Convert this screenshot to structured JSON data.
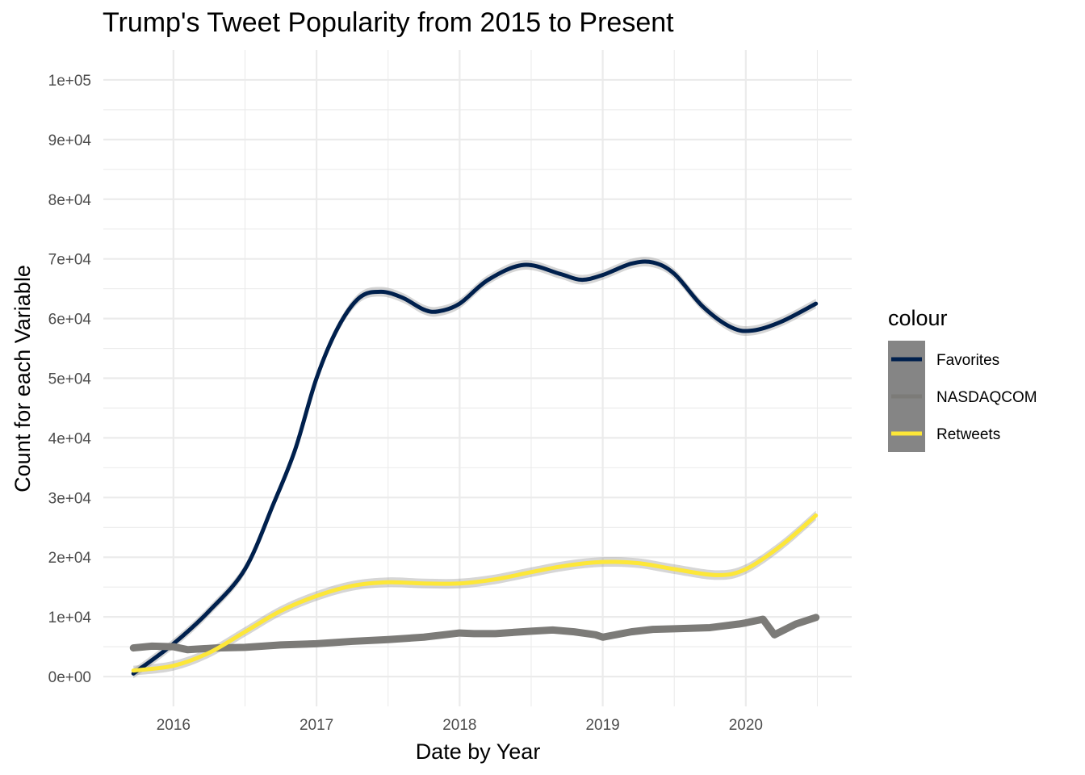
{
  "chart_data": {
    "type": "line",
    "title": "Trump's Tweet Popularity from 2015 to Present",
    "xlabel": "Date by Year",
    "ylabel": "Count for each Variable",
    "xlim": [
      2015.51,
      2020.74
    ],
    "ylim": [
      -5000,
      105000
    ],
    "x_ticks": [
      2016,
      2017,
      2018,
      2019,
      2020
    ],
    "x_tick_labels": [
      "2016",
      "2017",
      "2018",
      "2019",
      "2020"
    ],
    "y_ticks": [
      0,
      10000,
      20000,
      30000,
      40000,
      50000,
      60000,
      70000,
      80000,
      90000,
      100000
    ],
    "y_tick_labels": [
      "0e+00",
      "1e+04",
      "2e+04",
      "3e+04",
      "4e+04",
      "5e+04",
      "6e+04",
      "7e+04",
      "8e+04",
      "9e+04",
      "1e+05"
    ],
    "grid": true,
    "legend_title": "colour",
    "legend_position": "right",
    "series": [
      {
        "name": "Favorites",
        "color": "#00204d",
        "smooth": true,
        "confidence_band": true,
        "x": [
          2015.72,
          2016.0,
          2016.25,
          2016.5,
          2016.7,
          2016.85,
          2017.0,
          2017.15,
          2017.3,
          2017.45,
          2017.6,
          2017.75,
          2017.85,
          2018.0,
          2018.2,
          2018.45,
          2018.7,
          2018.85,
          2019.0,
          2019.2,
          2019.35,
          2019.5,
          2019.7,
          2019.9,
          2020.05,
          2020.25,
          2020.49
        ],
        "y": [
          500,
          5500,
          11000,
          18000,
          29000,
          38000,
          50000,
          58500,
          63500,
          64500,
          63500,
          61500,
          61200,
          62500,
          66500,
          69000,
          67500,
          66500,
          67300,
          69200,
          69400,
          67500,
          62000,
          58500,
          58000,
          59500,
          62500
        ]
      },
      {
        "name": "NASDAQCOM",
        "color": "#7c7b78",
        "smooth": false,
        "confidence_band": false,
        "x": [
          2015.72,
          2015.85,
          2016.0,
          2016.1,
          2016.3,
          2016.5,
          2016.75,
          2017.0,
          2017.25,
          2017.5,
          2017.75,
          2018.0,
          2018.1,
          2018.25,
          2018.5,
          2018.65,
          2018.8,
          2018.95,
          2019.0,
          2019.2,
          2019.35,
          2019.5,
          2019.75,
          2019.95,
          2020.0,
          2020.12,
          2020.2,
          2020.35,
          2020.49
        ],
        "y": [
          4800,
          5100,
          5000,
          4500,
          4800,
          4900,
          5300,
          5500,
          5900,
          6200,
          6600,
          7300,
          7200,
          7200,
          7600,
          7800,
          7500,
          7000,
          6600,
          7500,
          7900,
          8000,
          8200,
          8800,
          9000,
          9600,
          7000,
          8800,
          9900
        ]
      },
      {
        "name": "Retweets",
        "color": "#fde738",
        "smooth": true,
        "confidence_band": true,
        "x": [
          2015.72,
          2016.0,
          2016.25,
          2016.5,
          2016.75,
          2017.0,
          2017.25,
          2017.5,
          2017.75,
          2018.0,
          2018.25,
          2018.5,
          2018.75,
          2019.0,
          2019.25,
          2019.5,
          2019.8,
          2020.0,
          2020.25,
          2020.49
        ],
        "y": [
          1000,
          1800,
          4000,
          7500,
          11000,
          13500,
          15200,
          15800,
          15600,
          15600,
          16300,
          17500,
          18600,
          19200,
          19000,
          18000,
          17000,
          18000,
          22000,
          27000
        ]
      }
    ]
  }
}
